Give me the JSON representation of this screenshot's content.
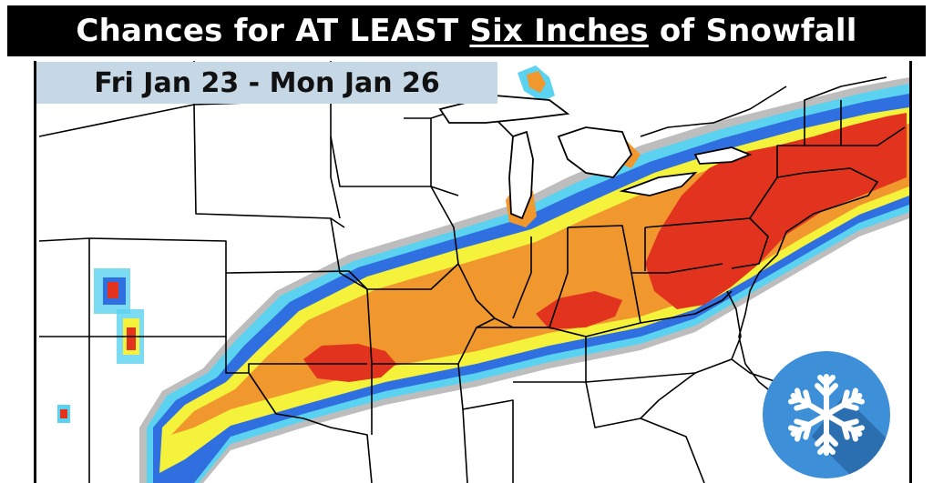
{
  "title": {
    "prefix": "Chances for AT LEAST ",
    "emphasis": "Six Inches",
    "suffix": " of Snowfall"
  },
  "date_range": "Fri Jan 23 - Mon Jan 26",
  "icons": {
    "badge": "snowflake-icon"
  },
  "colors": {
    "title_bg": "#000000",
    "title_text": "#ffffff",
    "date_box_bg": "#c6d7e6",
    "prob_gray": "#bdbdbd",
    "prob_cyan": "#5ad2f0",
    "prob_blue": "#2f6fe0",
    "prob_yellow": "#f4f23a",
    "prob_orange": "#f0972e",
    "prob_red": "#e2331f",
    "badge_blue": "#3d8fd8",
    "badge_shadow": "#2a6cad"
  }
}
